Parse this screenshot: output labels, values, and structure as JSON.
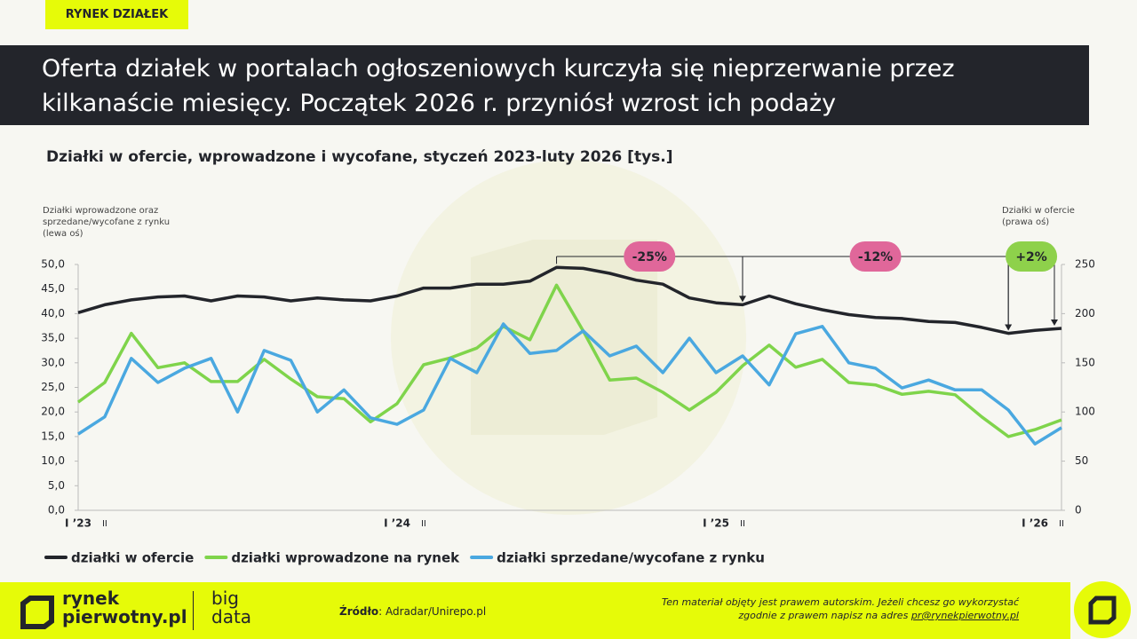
{
  "badge": "RYNEK DZIAŁEK",
  "headline": [
    "Oferta działek w portalach ogłoszeniowych kurczyła się nieprzerwanie przez",
    "kilkanaście miesięcy. Początek 2026 r. przyniósł wzrost ich podaży"
  ],
  "chart_data": {
    "type": "line",
    "title": "Działki w ofercie, wprowadzone i wycofane, styczeń 2023-luty 2026 [tys.]",
    "y_label": "Działki wprowadzone oraz sprzedane/wycofane z rynku (lewa oś)",
    "y2_label": "Działki w ofercie (prawa oś)",
    "categories": [
      "I ’23",
      "II",
      null,
      null,
      null,
      null,
      null,
      null,
      null,
      null,
      null,
      null,
      "I ’24",
      "II",
      null,
      null,
      null,
      null,
      null,
      null,
      null,
      null,
      null,
      null,
      "I ’25",
      "II",
      null,
      null,
      null,
      null,
      null,
      null,
      null,
      null,
      null,
      null,
      "I ’26",
      "II"
    ],
    "ylim": [
      0,
      50
    ],
    "yticks": [
      {
        "value": 0,
        "label": "0,0"
      },
      {
        "value": 5,
        "label": "5,0"
      },
      {
        "value": 10,
        "label": "10,0"
      },
      {
        "value": 15,
        "label": "15,0"
      },
      {
        "value": 20,
        "label": "20,0"
      },
      {
        "value": 25,
        "label": "25,0"
      },
      {
        "value": 30,
        "label": "30,0"
      },
      {
        "value": 35,
        "label": "35,0"
      },
      {
        "value": 40,
        "label": "40,0"
      },
      {
        "value": 45,
        "label": "45,0"
      },
      {
        "value": 50,
        "label": "50,0"
      }
    ],
    "y2lim": [
      0,
      250
    ],
    "y2ticks": [
      0,
      50,
      100,
      150,
      200,
      250
    ],
    "series": [
      {
        "name": "działki w ofercie",
        "color": "#23252b",
        "axis": "y2",
        "values": [
          201,
          209,
          214,
          217,
          218,
          213,
          218,
          217,
          213,
          216,
          214,
          213,
          218,
          226,
          226,
          230,
          230,
          233,
          247,
          246,
          241,
          234,
          230,
          216,
          211,
          209,
          218,
          210,
          204,
          199,
          196,
          195,
          192,
          191,
          186,
          180,
          183,
          185
        ]
      },
      {
        "name": "działki wprowadzone na rynek",
        "color": "#7fd44b",
        "values": [
          22.0,
          26.0,
          36.0,
          29.0,
          30.0,
          26.2,
          26.2,
          30.7,
          26.7,
          23.1,
          22.7,
          18.0,
          21.7,
          29.6,
          31.0,
          33.0,
          37.4,
          34.7,
          45.8,
          36.5,
          26.5,
          26.9,
          24.0,
          20.4,
          24.0,
          29.4,
          33.6,
          29.1,
          30.7,
          26.0,
          25.5,
          23.6,
          24.2,
          23.5,
          19.0,
          15.0,
          16.4,
          18.4
        ]
      },
      {
        "name": "działki sprzedane/wycofane z rynku",
        "color": "#4aa8e0",
        "values": [
          15.5,
          19.0,
          30.9,
          26.0,
          28.9,
          30.9,
          20.0,
          32.5,
          30.5,
          20.0,
          24.5,
          18.8,
          17.5,
          20.4,
          30.9,
          28.0,
          37.9,
          31.9,
          32.5,
          36.5,
          31.4,
          33.4,
          28.0,
          35.0,
          28.0,
          31.4,
          25.5,
          35.9,
          37.4,
          30.0,
          28.9,
          24.9,
          26.5,
          24.5,
          24.5,
          20.4,
          13.5,
          16.8
        ]
      }
    ],
    "annotations": [
      {
        "text": "-25%",
        "color": "#e0679a"
      },
      {
        "text": "-12%",
        "color": "#e0679a"
      },
      {
        "text": "+2%",
        "color": "#8ed14b"
      }
    ]
  },
  "footer": {
    "logo": [
      "rynek",
      "pierwotny.pl"
    ],
    "brand": [
      "big",
      "data"
    ],
    "source_label": "Źródło",
    "source": ": Adradar/Unirepo.pl",
    "notice": [
      "Ten materiał objęty jest prawem autorskim. Jeżeli chcesz go wykorzystać",
      "zgodnie z prawem napisz na adres "
    ],
    "email": "pr@rynekpierwotny.pl"
  }
}
